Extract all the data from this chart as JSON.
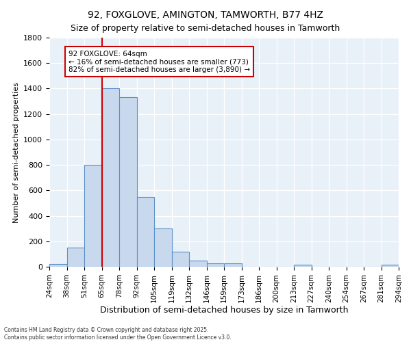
{
  "title": "92, FOXGLOVE, AMINGTON, TAMWORTH, B77 4HZ",
  "subtitle": "Size of property relative to semi-detached houses in Tamworth",
  "xlabel": "Distribution of semi-detached houses by size in Tamworth",
  "ylabel": "Number of semi-detached properties",
  "footnote1": "Contains HM Land Registry data © Crown copyright and database right 2025.",
  "footnote2": "Contains public sector information licensed under the Open Government Licence v3.0.",
  "annotation_title": "92 FOXGLOVE: 64sqm",
  "annotation_line1": "← 16% of semi-detached houses are smaller (773)",
  "annotation_line2": "82% of semi-detached houses are larger (3,890) →",
  "bar_heights": [
    20,
    150,
    800,
    1400,
    1330,
    550,
    300,
    120,
    50,
    25,
    25,
    0,
    0,
    0,
    15,
    0,
    0,
    0,
    0,
    15
  ],
  "bar_color": "#c9d9ed",
  "bar_edge_color": "#5b8fc9",
  "vline_bin": 3,
  "vline_color": "#cc0000",
  "ylim": [
    0,
    1800
  ],
  "yticks": [
    0,
    200,
    400,
    600,
    800,
    1000,
    1200,
    1400,
    1600,
    1800
  ],
  "bg_color": "#e8f0f8",
  "grid_color": "#ffffff",
  "annotation_box_color": "#ffffff",
  "annotation_box_edge": "#cc0000",
  "tick_labels": [
    "24sqm",
    "38sqm",
    "51sqm",
    "65sqm",
    "78sqm",
    "92sqm",
    "105sqm",
    "119sqm",
    "132sqm",
    "146sqm",
    "159sqm",
    "173sqm",
    "186sqm",
    "200sqm",
    "213sqm",
    "227sqm",
    "240sqm",
    "254sqm",
    "267sqm",
    "281sqm",
    "294sqm"
  ]
}
